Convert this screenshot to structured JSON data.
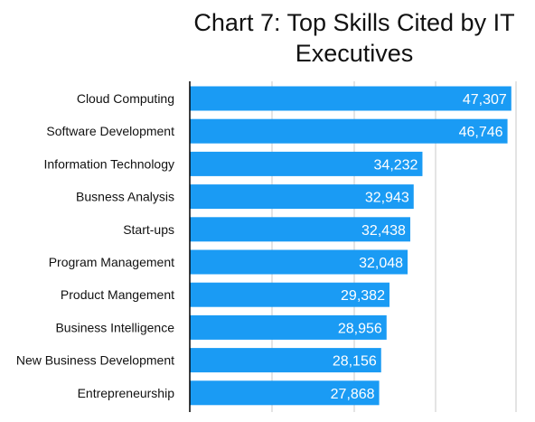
{
  "chart_data": {
    "type": "bar",
    "orientation": "horizontal",
    "title": "Chart 7: Top Skills Cited by IT Executives",
    "categories": [
      "Cloud Computing",
      "Software Development",
      "Information Technology",
      "Busness Analysis",
      "Start-ups",
      "Program Management",
      "Product Mangement",
      "Business Intelligence",
      "New Business Development",
      "Entrepreneurship"
    ],
    "values": [
      47307,
      46746,
      34232,
      32943,
      32438,
      32048,
      29382,
      28956,
      28156,
      27868
    ],
    "value_labels": [
      "47,307",
      "46,746",
      "34,232",
      "32,943",
      "32,438",
      "32,048",
      "29,382",
      "28,956",
      "28,156",
      "27,868"
    ],
    "xlim": [
      0,
      48000
    ],
    "grid": true,
    "legend": "none",
    "colors": {
      "bar": "#1a9bf4",
      "grid": "#c8c8c8",
      "axis": "#000000"
    }
  }
}
